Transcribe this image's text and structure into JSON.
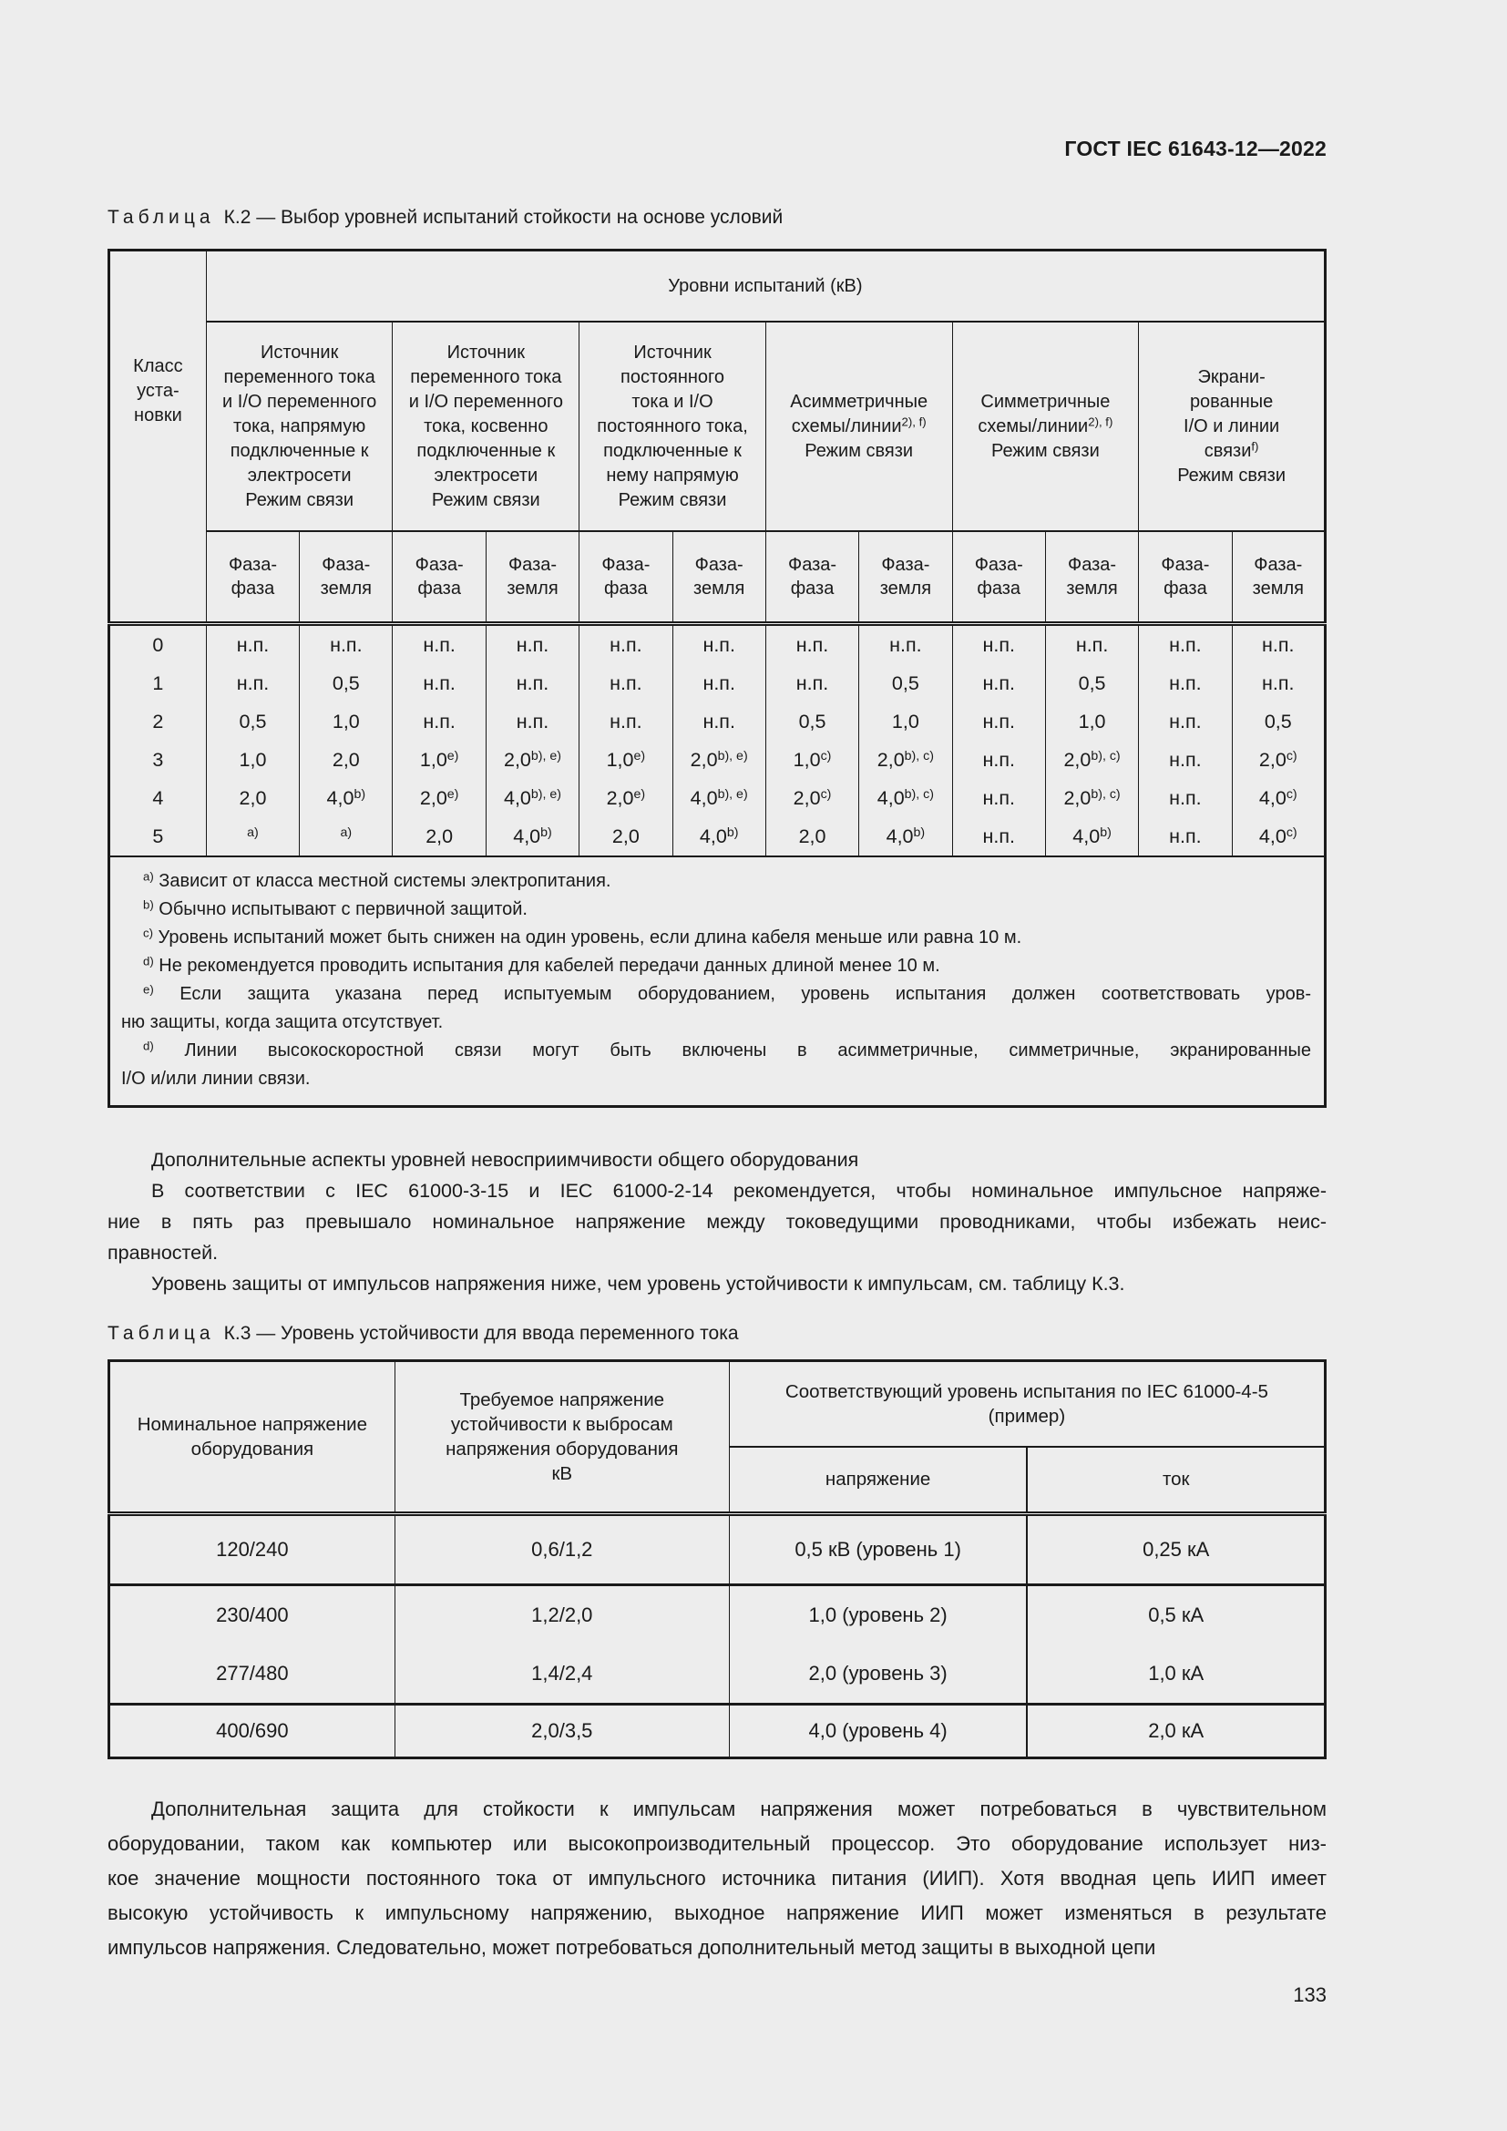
{
  "page": {
    "doc_header": "ГОСТ IEC 61643-12—2022",
    "page_number": "133"
  },
  "k2": {
    "title_word": "Таблица",
    "title_rest": "К.2 — Выбор уровней испытаний стойкости на основе условий",
    "top_header": "Уровни испытаний (кВ)",
    "class_header": [
      "Класс",
      "уста-",
      "новки"
    ],
    "groups": [
      [
        "Источник",
        "переменного тока",
        "и I/O переменного",
        "тока, напрямую",
        "подключенные к",
        "электросети",
        "Режим связи"
      ],
      [
        "Источник",
        "переменного тока",
        "и I/O переменного",
        "тока, косвенно",
        "подключенные к",
        "электросети",
        "Режим связи"
      ],
      [
        "Источник",
        "постоянного",
        "тока и I/O",
        "постоянного тока,",
        "подключенные к",
        "нему напрямую",
        "Режим связи"
      ],
      [
        "Асимметричные",
        "схемы/линии^2), f)",
        "Режим связи"
      ],
      [
        "Симметричные",
        "схемы/линии^2), f)",
        "Режим связи"
      ],
      [
        "Экрани-",
        "рованные",
        "I/O и линии",
        "связи^f)",
        "Режим связи"
      ]
    ],
    "phase": [
      [
        "Фаза-",
        "фаза"
      ],
      [
        "Фаза-",
        "земля"
      ],
      [
        "Фаза-",
        "фаза"
      ],
      [
        "Фаза-",
        "земля"
      ],
      [
        "Фаза-",
        "фаза"
      ],
      [
        "Фаза-",
        "земля"
      ],
      [
        "Фаза-",
        "фаза"
      ],
      [
        "Фаза-",
        "земля"
      ],
      [
        "Фаза-",
        "фаза"
      ],
      [
        "Фаза-",
        "земля"
      ],
      [
        "Фаза-",
        "фаза"
      ],
      [
        "Фаза-",
        "земля"
      ]
    ],
    "rows": [
      {
        "cls": "0",
        "cells": [
          "н.п.",
          "н.п.",
          "н.п.",
          "н.п.",
          "н.п.",
          "н.п.",
          "н.п.",
          "н.п.",
          "н.п.",
          "н.п.",
          "н.п.",
          "н.п."
        ]
      },
      {
        "cls": "1",
        "cells": [
          "н.п.",
          "0,5",
          "н.п.",
          "н.п.",
          "н.п.",
          "н.п.",
          "н.п.",
          "0,5",
          "н.п.",
          "0,5",
          "н.п.",
          "н.п."
        ]
      },
      {
        "cls": "2",
        "cells": [
          "0,5",
          "1,0",
          "н.п.",
          "н.п.",
          "н.п.",
          "н.п.",
          "0,5",
          "1,0",
          "н.п.",
          "1,0",
          "н.п.",
          "0,5"
        ]
      },
      {
        "cls": "3",
        "cells": [
          "1,0",
          "2,0",
          "1,0^e)",
          "2,0^b), e)",
          "1,0^e)",
          "2,0^b), e)",
          "1,0^c)",
          "2,0^b), c)",
          "н.п.",
          "2,0^b), c)",
          "н.п.",
          "2,0^c)"
        ]
      },
      {
        "cls": "4",
        "cells": [
          "2,0",
          "4,0^b)",
          "2,0^e)",
          "4,0^b), e)",
          "2,0^e)",
          "4,0^b), e)",
          "2,0^c)",
          "4,0^b), c)",
          "н.п.",
          "2,0^b), c)",
          "н.п.",
          "4,0^c)"
        ]
      },
      {
        "cls": "5",
        "cells": [
          "^a)",
          "^a)",
          "2,0",
          "4,0^b)",
          "2,0",
          "4,0^b)",
          "2,0",
          "4,0^b)",
          "н.п.",
          "4,0^b)",
          "н.п.",
          "4,0^c)"
        ]
      }
    ],
    "footnotes": [
      {
        "m": "a)",
        "lines": [
          "Зависит от класса местной системы электропитания."
        ]
      },
      {
        "m": "b)",
        "lines": [
          "Обычно испытывают с первичной защитой."
        ]
      },
      {
        "m": "c)",
        "lines": [
          "Уровень испытаний может быть снижен на один уровень, если длина кабеля меньше или равна 10 м."
        ]
      },
      {
        "m": "d)",
        "lines": [
          "Не рекомендуется проводить испытания для кабелей передачи данных длиной менее 10 м."
        ]
      },
      {
        "m": "e)",
        "lines": [
          "Если защита указана перед испытуемым оборудованием, уровень испытания должен соответствовать уров-",
          "ню защиты, когда защита отсутствует."
        ]
      },
      {
        "m": "d)",
        "lines": [
          "Линии высокоскоростной связи могут быть включены в асимметричные, симметричные, экранированные",
          "I/O и/или линии связи."
        ]
      }
    ]
  },
  "paragraphs": [
    [
      "Дополнительные аспекты уровней невосприимчивости общего оборудования"
    ],
    [
      "В соответствии с IEC 61000-3-15 и IEC 61000-2-14 рекомендуется, чтобы номинальное импульсное напряже-",
      "ние в пять раз превышало номинальное напряжение между токоведущими проводниками, чтобы избежать неис-",
      "правностей."
    ],
    [
      "Уровень защиты от импульсов напряжения ниже, чем уровень устойчивости к импульсам, см. таблицу К.3."
    ]
  ],
  "k3": {
    "title_word": "Таблица",
    "title_rest": "К.3 — Уровень устойчивости для ввода переменного тока",
    "col1": [
      "Номинальное напряжение",
      "оборудования"
    ],
    "col2": [
      "Требуемое напряжение",
      "устойчивости к выбросам",
      "напряжения оборудования",
      "кВ"
    ],
    "col34": [
      "Соответствующий уровень испытания по IEC 61000-4-5",
      "(пример)"
    ],
    "sub": [
      "напряжение",
      "ток"
    ],
    "rows": [
      [
        "120/240",
        "0,6/1,2",
        "0,5 кВ (уровень 1)",
        "0,25 кА"
      ],
      [
        "230/400",
        "1,2/2,0",
        "1,0 (уровень 2)",
        "0,5 кА"
      ],
      [
        "277/480",
        "1,4/2,4",
        "2,0 (уровень 3)",
        "1,0 кА"
      ],
      [
        "400/690",
        "2,0/3,5",
        "4,0 (уровень 4)",
        "2,0 кА"
      ]
    ]
  },
  "final_paragraph": [
    "Дополнительная защита для стойкости к импульсам напряжения может потребоваться в чувствительном",
    "оборудовании, таком как компьютер или высокопроизводительный процессор. Это оборудование использует низ-",
    "кое значение мощности постоянного тока от импульсного источника питания (ИИП). Хотя вводная цепь ИИП имеет",
    "высокую устойчивость к импульсному напряжению, выходное напряжение ИИП может изменяться в результате",
    "импульсов напряжения. Следовательно, может потребоваться дополнительный метод защиты в выходной цепи"
  ]
}
